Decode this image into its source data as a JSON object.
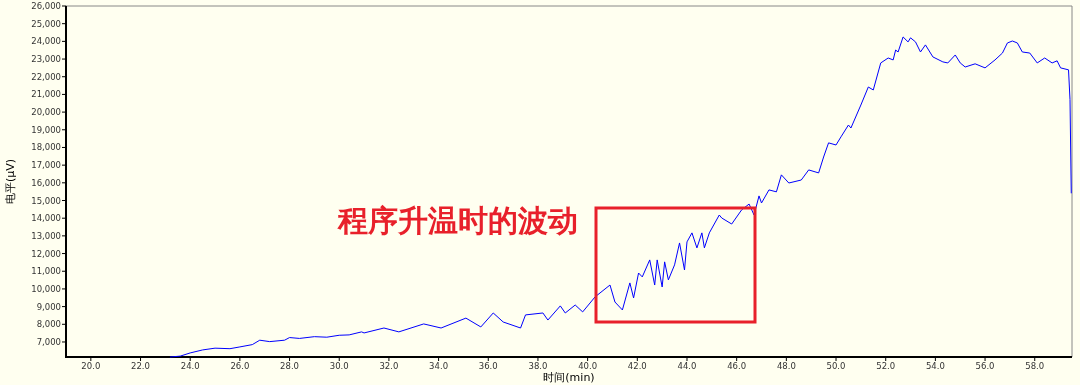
{
  "chart_data": {
    "type": "line",
    "xlabel": "时间(min)",
    "ylabel": "电平(µV)",
    "annotations": [
      "程序升温时的波动"
    ],
    "xlim": [
      19.0,
      59.5
    ],
    "ylim": [
      6150,
      26000
    ],
    "xticks": [
      {
        "value": 20,
        "label": "20.0"
      },
      {
        "value": 22,
        "label": "22.0"
      },
      {
        "value": 24,
        "label": "24.0"
      },
      {
        "value": 26,
        "label": "26.0"
      },
      {
        "value": 28,
        "label": "28.0"
      },
      {
        "value": 30,
        "label": "30.0"
      },
      {
        "value": 32,
        "label": "32.0"
      },
      {
        "value": 34,
        "label": "34.0"
      },
      {
        "value": 36,
        "label": "36.0"
      },
      {
        "value": 38,
        "label": "38.0"
      },
      {
        "value": 40,
        "label": "40.0"
      },
      {
        "value": 42,
        "label": "42.0"
      },
      {
        "value": 44,
        "label": "44.0"
      },
      {
        "value": 46,
        "label": "46.0"
      },
      {
        "value": 48,
        "label": "48.0"
      },
      {
        "value": 50,
        "label": "50.0"
      },
      {
        "value": 52,
        "label": "52.0"
      },
      {
        "value": 54,
        "label": "54.0"
      },
      {
        "value": 56,
        "label": "56.0"
      },
      {
        "value": 58,
        "label": "58.0"
      }
    ],
    "yticks": [
      {
        "value": 7000,
        "label": "7,000"
      },
      {
        "value": 8000,
        "label": "8,000"
      },
      {
        "value": 9000,
        "label": "9,000"
      },
      {
        "value": 10000,
        "label": "10,000"
      },
      {
        "value": 11000,
        "label": "11,000"
      },
      {
        "value": 12000,
        "label": "12,000"
      },
      {
        "value": 13000,
        "label": "13,000"
      },
      {
        "value": 14000,
        "label": "14,000"
      },
      {
        "value": 15000,
        "label": "15,000"
      },
      {
        "value": 16000,
        "label": "16,000"
      },
      {
        "value": 17000,
        "label": "17,000"
      },
      {
        "value": 18000,
        "label": "18,000"
      },
      {
        "value": 19000,
        "label": "19,000"
      },
      {
        "value": 20000,
        "label": "20,000"
      },
      {
        "value": 21000,
        "label": "21,000"
      },
      {
        "value": 22000,
        "label": "22,000"
      },
      {
        "value": 23000,
        "label": "23,000"
      },
      {
        "value": 24000,
        "label": "24,000"
      },
      {
        "value": 25000,
        "label": "25,000"
      },
      {
        "value": 26000,
        "label": "26,000"
      }
    ],
    "grid": false,
    "marker": "none",
    "line_style": "solid",
    "series": [
      {
        "color": "#0000ff",
        "x": [
          23.2,
          23.6,
          24.0,
          24.5,
          25.0,
          25.6,
          26.0,
          26.5,
          26.8,
          27.2,
          27.8,
          28.0,
          28.4,
          29.0,
          29.5,
          30.0,
          30.4,
          30.9,
          31.0,
          31.8,
          32.4,
          33.4,
          34.1,
          35.1,
          35.7,
          36.2,
          36.6,
          37.3,
          37.5,
          38.2,
          38.4,
          38.9,
          39.1,
          39.5,
          39.8,
          40.3,
          40.9,
          41.1,
          41.4,
          41.7,
          41.85,
          42.05,
          42.2,
          42.5,
          42.7,
          42.8,
          43.0,
          43.1,
          43.25,
          43.5,
          43.7,
          43.9,
          44.0,
          44.2,
          44.4,
          44.6,
          44.7,
          44.9,
          45.3,
          45.4,
          45.8,
          46.2,
          46.5,
          46.7,
          46.9,
          47.0,
          47.3,
          47.6,
          47.8,
          48.1,
          48.6,
          48.9,
          49.3,
          49.5,
          49.7,
          50.0,
          50.2,
          50.5,
          50.6,
          51.0,
          51.3,
          51.5,
          51.8,
          52.1,
          52.3,
          52.4,
          52.5,
          52.7,
          52.9,
          53.0,
          53.2,
          53.4,
          53.6,
          53.9,
          54.3,
          54.5,
          54.8,
          55.0,
          55.2,
          55.6,
          56.0,
          56.4,
          56.7,
          56.9,
          57.1,
          57.3,
          57.5,
          57.8,
          58.1,
          58.4,
          58.7,
          58.9,
          59.04,
          59.36,
          59.42,
          59.47
        ],
        "values": [
          6150,
          6200,
          6380,
          6550,
          6650,
          6620,
          6720,
          6850,
          7100,
          7020,
          7100,
          7250,
          7200,
          7300,
          7270,
          7380,
          7400,
          7570,
          7510,
          7790,
          7570,
          8020,
          7790,
          8350,
          7850,
          8640,
          8130,
          7790,
          8530,
          8640,
          8240,
          9040,
          8640,
          9090,
          8700,
          9550,
          10220,
          9260,
          8810,
          10340,
          9490,
          10900,
          10680,
          11640,
          10220,
          11640,
          10110,
          11530,
          10510,
          11360,
          12600,
          11070,
          12660,
          13170,
          12320,
          13170,
          12320,
          13170,
          14180,
          14010,
          13670,
          14470,
          14800,
          14180,
          15260,
          14860,
          15600,
          15490,
          16450,
          15990,
          16160,
          16730,
          16560,
          17460,
          18260,
          18140,
          18600,
          19270,
          19100,
          20400,
          21420,
          21250,
          22780,
          23060,
          22950,
          23510,
          23400,
          24250,
          23970,
          24200,
          23970,
          23400,
          23800,
          23120,
          22840,
          22780,
          23230,
          22780,
          22550,
          22730,
          22500,
          22950,
          23340,
          23910,
          24020,
          23910,
          23400,
          23340,
          22780,
          23060,
          22780,
          22900,
          22500,
          22390,
          20700,
          15430
        ]
      }
    ]
  }
}
